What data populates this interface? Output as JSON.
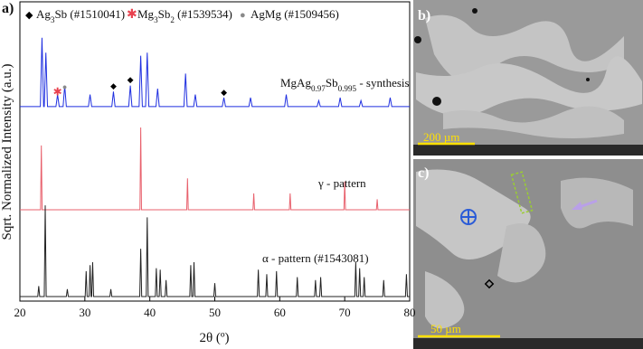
{
  "panel_labels": [
    "a)",
    "b)",
    "c)"
  ],
  "scale_bars": [
    "200 µm",
    "50 µm"
  ],
  "chart_data": {
    "type": "line",
    "xlabel": "2θ (º)",
    "ylabel": "Sqrt. Normalized Intensity (a.u.)",
    "xlim": [
      20,
      80
    ],
    "xticks": [
      20,
      30,
      40,
      50,
      60,
      70,
      80
    ],
    "ylim": [
      0,
      100
    ],
    "phases": [
      {
        "symbol": "◆",
        "color": "#000000",
        "formula": [
          "Ag",
          "3",
          "Sb (#1510041)"
        ],
        "peaks": [
          {
            "x": 34.4,
            "y": 71.6
          },
          {
            "x": 37,
            "y": 73.7
          },
          {
            "x": 51.4,
            "y": 69.5
          }
        ]
      },
      {
        "symbol": "✱",
        "color": "#e8414e",
        "formula": [
          "Mg",
          "3",
          "Sb",
          "2",
          " (#1539534)"
        ],
        "peaks": [
          {
            "x": 25.8,
            "y": 69.5
          }
        ]
      },
      {
        "symbol": "●",
        "color": "#8a8a8a",
        "formula": [
          "AgMg (#1509456)"
        ],
        "peaks": [
          {
            "x": 26.9,
            "y": 71.3
          }
        ]
      }
    ],
    "series": [
      {
        "label": [
          "MgAg",
          "0.97",
          "Sb",
          "0.995",
          " - synthesis"
        ],
        "color": "#1f2fe0",
        "x": [
          20,
          23.15,
          23.4,
          23.65,
          23.75,
          24,
          24.25,
          25.55,
          25.8,
          26.05,
          26.65,
          26.9,
          27.15,
          30.55,
          30.8,
          31.05,
          34.15,
          34.4,
          34.65,
          36.75,
          37,
          37.25,
          38.35,
          38.6,
          38.85,
          39.35,
          39.6,
          39.85,
          40.95,
          41.2,
          41.45,
          45.25,
          45.5,
          45.75,
          46.75,
          47,
          47.25,
          51.15,
          51.4,
          51.65,
          55.25,
          55.5,
          55.75,
          60.75,
          61,
          61.25,
          65.75,
          66,
          66.25,
          69.05,
          69.3,
          69.55,
          72.25,
          72.5,
          72.75,
          76.75,
          77,
          77.25,
          80
        ],
        "values": [
          65,
          65,
          88,
          65,
          65,
          83,
          65,
          65,
          69,
          65,
          65,
          72,
          65,
          65,
          69,
          65,
          65,
          70,
          65,
          65,
          72,
          65,
          65,
          82,
          65,
          65,
          83,
          65,
          65,
          71,
          65,
          65,
          76,
          65,
          65,
          69,
          65,
          65,
          68,
          65,
          65,
          68,
          65,
          65,
          69,
          65,
          65,
          67,
          65,
          65,
          68,
          65,
          65,
          67,
          65,
          65,
          68,
          65,
          65
        ]
      },
      {
        "label": [
          "γ - pattern"
        ],
        "color": "#e8606c",
        "x": [
          20,
          23.18,
          23.3,
          23.42,
          38.48,
          38.6,
          38.72,
          45.68,
          45.8,
          45.92,
          55.88,
          56,
          56.12,
          61.48,
          61.6,
          61.72,
          69.88,
          70,
          70.12,
          74.88,
          75,
          75.12,
          80
        ],
        "values": [
          30.5,
          30.5,
          52,
          30.5,
          30.5,
          58,
          30.5,
          30.5,
          41,
          30.5,
          30.5,
          36,
          30.5,
          30.5,
          36,
          30.5,
          30.5,
          40,
          30.5,
          30.5,
          34,
          30.5,
          30.5
        ]
      },
      {
        "label": [
          "α - pattern (#1543081)"
        ],
        "color": "#222222",
        "x": [
          20,
          22.75,
          22.9,
          23.05,
          23.75,
          23.9,
          24.05,
          27.15,
          27.3,
          27.45,
          30.05,
          30.2,
          30.35,
          30.65,
          30.8,
          30.95,
          31.05,
          31.2,
          31.35,
          33.85,
          34,
          34.15,
          38.45,
          38.6,
          38.75,
          39.45,
          39.6,
          39.75,
          40.85,
          41,
          41.15,
          41.45,
          41.6,
          41.75,
          42.35,
          42.5,
          42.65,
          46.15,
          46.3,
          46.45,
          46.65,
          46.8,
          46.95,
          49.85,
          50,
          50.15,
          56.55,
          56.7,
          56.85,
          57.85,
          58,
          58.15,
          59.35,
          59.5,
          59.65,
          62.55,
          62.7,
          62.85,
          65.35,
          65.5,
          65.65,
          66.15,
          66.3,
          66.45,
          71.55,
          71.7,
          71.85,
          72.15,
          72.3,
          72.45,
          72.85,
          73,
          73.15,
          75.85,
          76,
          76.15,
          79.35,
          79.5,
          79.65,
          80
        ],
        "values": [
          1.5,
          1.5,
          5,
          1.5,
          1.5,
          32,
          1.5,
          1.5,
          4,
          1.5,
          1.5,
          10,
          1.5,
          1.5,
          12,
          1.5,
          1.5,
          13,
          1.5,
          1.5,
          4,
          1.5,
          1.5,
          17.5,
          1.5,
          1.5,
          28,
          1.5,
          1.5,
          11,
          1.5,
          1.5,
          10.5,
          1.5,
          1.5,
          7,
          1.5,
          1.5,
          12,
          1.5,
          1.5,
          13,
          1.5,
          1.5,
          6,
          1.5,
          1.5,
          10.5,
          1.5,
          1.5,
          9,
          1.5,
          1.5,
          10,
          1.5,
          1.5,
          8,
          1.5,
          1.5,
          7,
          1.5,
          1.5,
          8,
          1.5,
          1.5,
          13,
          1.5,
          1.5,
          11,
          1.5,
          1.5,
          8,
          1.5,
          1.5,
          7,
          1.5,
          1.5,
          9,
          1.5,
          1.5
        ]
      }
    ]
  }
}
